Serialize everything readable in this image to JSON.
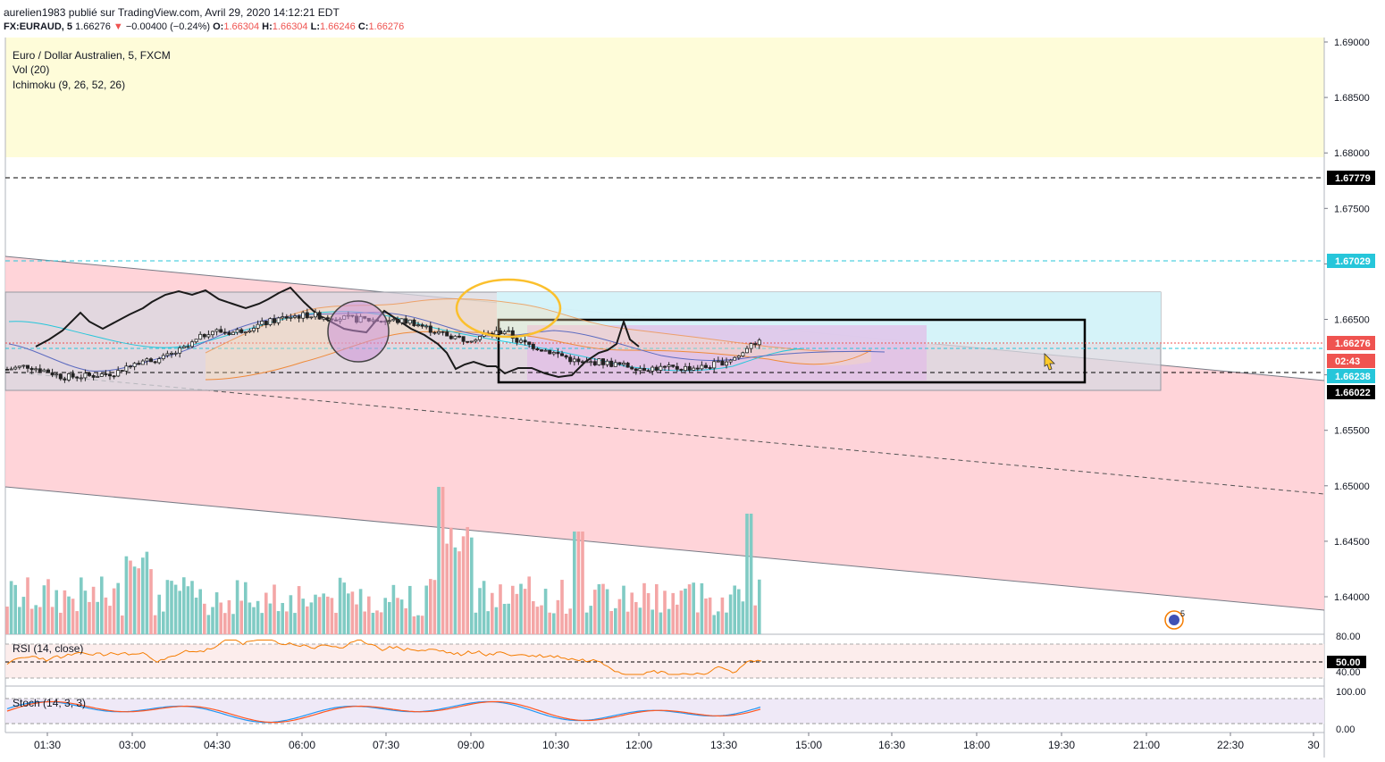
{
  "header": {
    "publisher_line": "aurelien1983 publié sur TradingView.com, Avril 29, 2020 14:12:21 EDT",
    "symbol": "FX:EURAUD, 5",
    "last": "1.66276",
    "change": "−0.00400 (−0.24%)",
    "o_label": "O:",
    "o_value": "1.66304",
    "h_label": "H:",
    "h_value": "1.66304",
    "l_label": "L:",
    "l_value": "1.66246",
    "c_label": "C:",
    "c_value": "1.66276"
  },
  "legend": {
    "main": "Euro / Dollar Australien, 5, FXCM",
    "vol": "Vol (20)",
    "ichimoku": "Ichimoku (9, 26, 52, 26)",
    "rsi": "RSI (14, close)",
    "stoch": "Stoch (14, 3, 3)"
  },
  "price_axis": {
    "ticks": [
      "1.69000",
      "1.68500",
      "1.68000",
      "1.67500",
      "1.67000",
      "1.66500",
      "1.66000",
      "1.65500",
      "1.65000",
      "1.64500",
      "1.64000"
    ],
    "tags": [
      {
        "text": "1.67779",
        "color": "#000000"
      },
      {
        "text": "1.67029",
        "color": "#26c6da"
      },
      {
        "text": "1.66276",
        "color": "#ef5350"
      },
      {
        "text": "02:43",
        "color": "#ef5350"
      },
      {
        "text": "1.66238",
        "color": "#26c6da"
      },
      {
        "text": "1.66022",
        "color": "#000000"
      }
    ]
  },
  "rsi_axis": {
    "ticks": [
      "80.00",
      "40.00"
    ],
    "tag": "50.00"
  },
  "stoch_axis": {
    "ticks": [
      "100.00",
      "0.00"
    ]
  },
  "time_axis": [
    "01:30",
    "03:00",
    "04:30",
    "06:00",
    "07:30",
    "09:00",
    "10:30",
    "12:00",
    "13:30",
    "15:00",
    "16:30",
    "18:00",
    "19:30",
    "21:00",
    "22:30",
    "30"
  ],
  "event_marker": {
    "icon": "flag-icon",
    "count": "5"
  },
  "colors": {
    "up": "#26a69a",
    "down": "#ef5350",
    "rsi": "#f57c00",
    "stoch_k": "#2196f3",
    "stoch_d": "#ff5722",
    "channel": "#ffcdd2",
    "cyan_line": "#26c6da"
  },
  "chart_data": {
    "type": "candlestick",
    "symbol": "FX:EURAUD",
    "interval": "5",
    "ylim": [
      1.638,
      1.69
    ],
    "levels": {
      "resistance": 1.67779,
      "cyan_level": 1.67029,
      "last_price": 1.66276,
      "cyan_level_2": 1.66238,
      "support": 1.66022
    },
    "ohlc_last": {
      "open": 1.66304,
      "high": 1.66304,
      "low": 1.66246,
      "close": 1.66276
    },
    "indicators": [
      "Vol (20)",
      "Ichimoku (9, 26, 52, 26)",
      "RSI (14, close)",
      "Stoch (14, 3, 3)"
    ],
    "rsi_levels": [
      80,
      50,
      40
    ],
    "stoch_levels": [
      100,
      0
    ],
    "x_ticks": [
      "01:30",
      "03:00",
      "04:30",
      "06:00",
      "07:30",
      "09:00",
      "10:30",
      "12:00",
      "13:30",
      "15:00",
      "16:30",
      "18:00",
      "19:30",
      "21:00",
      "22:30",
      "30"
    ]
  }
}
